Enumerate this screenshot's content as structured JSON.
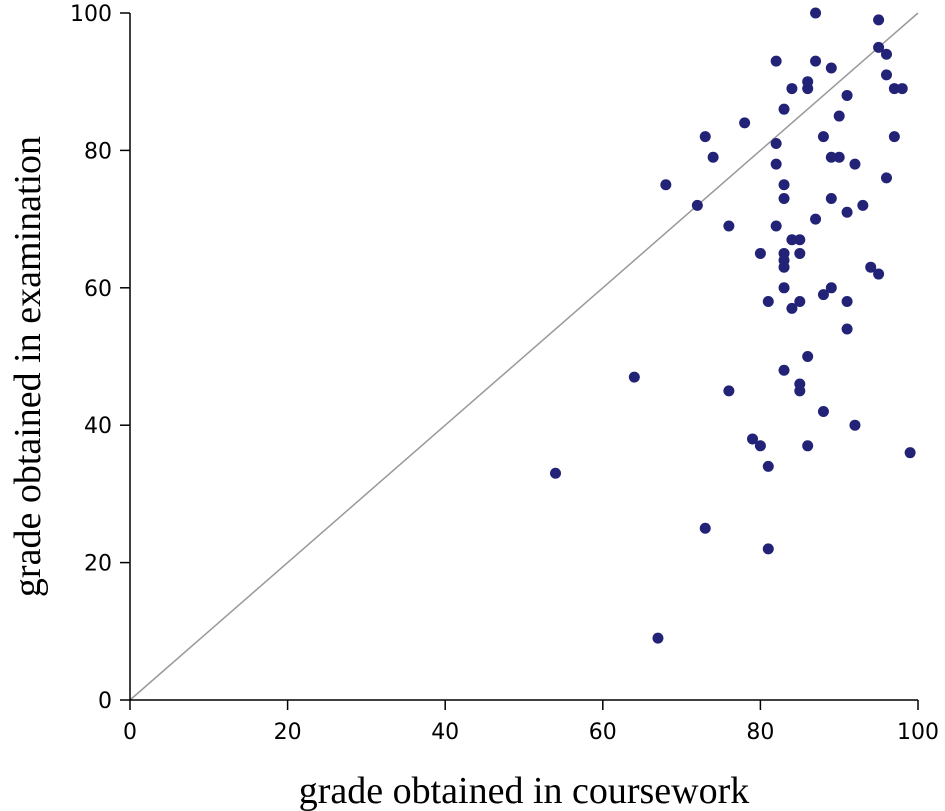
{
  "chart_data": {
    "type": "scatter",
    "title": "",
    "xlabel": "grade obtained in coursework",
    "ylabel": "grade obtained in examination",
    "xlim": [
      0,
      100
    ],
    "ylim": [
      0,
      100
    ],
    "x_ticks": [
      "0",
      "20",
      "40",
      "60",
      "80",
      "100"
    ],
    "y_ticks": [
      "0",
      "20",
      "40",
      "60",
      "80",
      "100"
    ],
    "grid": false,
    "reference_line": {
      "from": [
        0,
        0
      ],
      "to": [
        100,
        100
      ],
      "color": "#999999"
    },
    "point_color": "#222277",
    "points": [
      [
        54,
        33
      ],
      [
        64,
        47
      ],
      [
        67,
        9
      ],
      [
        68,
        75
      ],
      [
        72,
        72
      ],
      [
        73,
        82
      ],
      [
        73,
        25
      ],
      [
        74,
        79
      ],
      [
        76,
        69
      ],
      [
        76,
        45
      ],
      [
        78,
        84
      ],
      [
        79,
        38
      ],
      [
        80,
        37
      ],
      [
        80,
        65
      ],
      [
        81,
        58
      ],
      [
        81,
        34
      ],
      [
        81,
        22
      ],
      [
        82,
        93
      ],
      [
        82,
        81
      ],
      [
        82,
        78
      ],
      [
        82,
        69
      ],
      [
        83,
        86
      ],
      [
        83,
        75
      ],
      [
        83,
        73
      ],
      [
        83,
        65
      ],
      [
        83,
        64
      ],
      [
        83,
        63
      ],
      [
        83,
        60
      ],
      [
        83,
        48
      ],
      [
        84,
        89
      ],
      [
        84,
        67
      ],
      [
        84,
        57
      ],
      [
        85,
        67
      ],
      [
        85,
        65
      ],
      [
        85,
        58
      ],
      [
        85,
        46
      ],
      [
        85,
        45
      ],
      [
        86,
        90
      ],
      [
        86,
        89
      ],
      [
        86,
        50
      ],
      [
        86,
        37
      ],
      [
        87,
        100
      ],
      [
        87,
        93
      ],
      [
        87,
        70
      ],
      [
        88,
        82
      ],
      [
        88,
        59
      ],
      [
        88,
        42
      ],
      [
        89,
        92
      ],
      [
        89,
        79
      ],
      [
        89,
        73
      ],
      [
        89,
        60
      ],
      [
        90,
        85
      ],
      [
        90,
        79
      ],
      [
        91,
        88
      ],
      [
        91,
        71
      ],
      [
        91,
        58
      ],
      [
        91,
        54
      ],
      [
        92,
        78
      ],
      [
        92,
        40
      ],
      [
        93,
        72
      ],
      [
        94,
        63
      ],
      [
        95,
        99
      ],
      [
        95,
        95
      ],
      [
        95,
        62
      ],
      [
        96,
        94
      ],
      [
        96,
        91
      ],
      [
        96,
        76
      ],
      [
        97,
        89
      ],
      [
        97,
        82
      ],
      [
        98,
        89
      ],
      [
        99,
        36
      ]
    ]
  }
}
